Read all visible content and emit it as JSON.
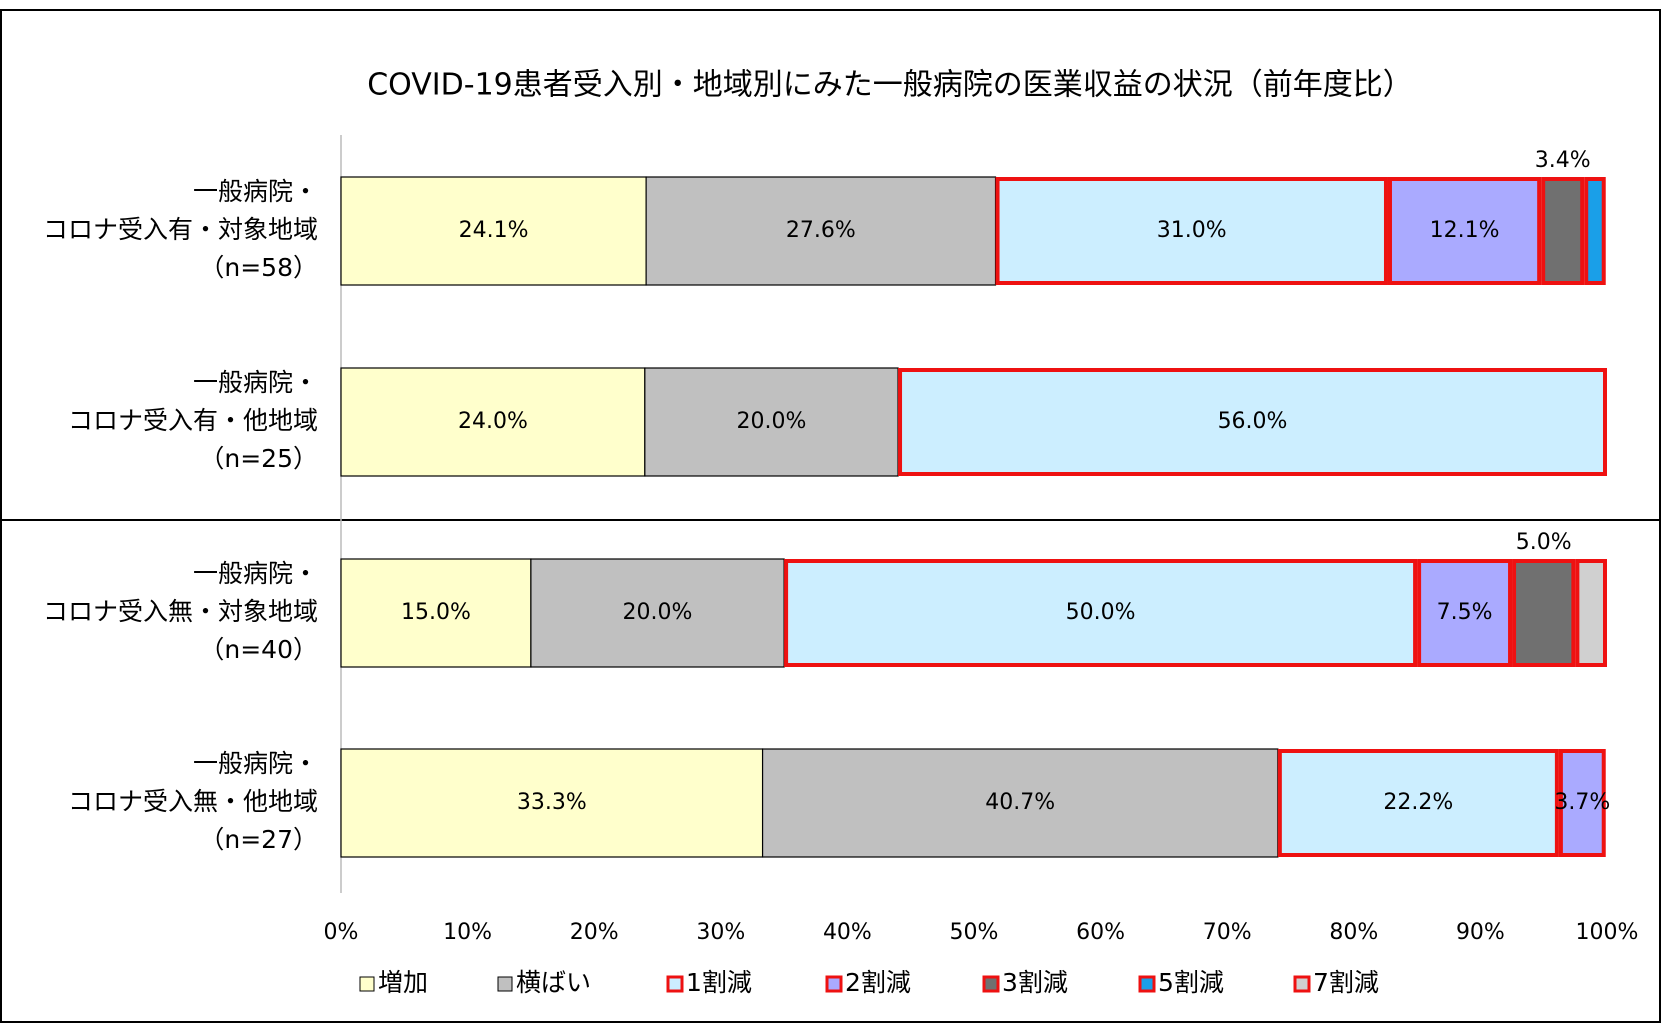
{
  "chart_data": {
    "type": "stacked_bar_horizontal",
    "title": "COVID-19患者受入別・地域別にみた一般病院の医業収益の状況（前年度比）",
    "categories": [
      [
        "一般病院・",
        "コロナ受入有・対象地域",
        "（n=58）"
      ],
      [
        "一般病院・",
        "コロナ受入有・他地域",
        "（n=25）"
      ],
      [
        "一般病院・",
        "コロナ受入無・対象地域",
        "（n=40）"
      ],
      [
        "一般病院・",
        "コロナ受入無・他地域",
        "（n=27）"
      ]
    ],
    "series": [
      {
        "name": "増加",
        "color": "#ffffcc",
        "stroke": "#000000",
        "values": [
          24.1,
          24.0,
          15.0,
          33.3
        ],
        "value_labels": [
          "24.1%",
          "24.0%",
          "15.0%",
          "33.3%"
        ]
      },
      {
        "name": "横ばい",
        "color": "#c0c0c0",
        "stroke": "#000000",
        "values": [
          27.6,
          20.0,
          20.0,
          40.7
        ],
        "value_labels": [
          "27.6%",
          "20.0%",
          "20.0%",
          "40.7%"
        ]
      },
      {
        "name": "1割減",
        "color": "#cceeff",
        "stroke": "#ee1111",
        "values": [
          31.0,
          56.0,
          50.0,
          22.2
        ],
        "value_labels": [
          "31.0%",
          "56.0%",
          "50.0%",
          "22.2%"
        ]
      },
      {
        "name": "2割減",
        "color": "#aaaaff",
        "stroke": "#ee1111",
        "values": [
          12.1,
          null,
          7.5,
          3.7
        ],
        "value_labels": [
          "12.1%",
          null,
          "7.5%",
          "3.7%"
        ]
      },
      {
        "name": "3割減",
        "color": "#707070",
        "stroke": "#ee1111",
        "values": [
          3.4,
          null,
          5.0,
          null
        ],
        "value_labels": [
          "3.4%",
          null,
          "5.0%",
          null
        ]
      },
      {
        "name": "5割減",
        "color": "#1a9fe8",
        "stroke": "#ee1111",
        "values": [
          1.7,
          null,
          null,
          null
        ],
        "value_labels": [
          null,
          null,
          null,
          null
        ]
      },
      {
        "name": "7割減",
        "color": "#d0d0d0",
        "stroke": "#ee1111",
        "values": [
          null,
          null,
          2.5,
          null
        ],
        "value_labels": [
          null,
          null,
          null,
          null
        ]
      }
    ],
    "xlim": [
      0,
      100
    ],
    "xticks": [
      {
        "value": 0,
        "label": "0%"
      },
      {
        "value": 10,
        "label": "10%"
      },
      {
        "value": 20,
        "label": "20%"
      },
      {
        "value": 30,
        "label": "30%"
      },
      {
        "value": 40,
        "label": "40%"
      },
      {
        "value": 50,
        "label": "50%"
      },
      {
        "value": 60,
        "label": "60%"
      },
      {
        "value": 70,
        "label": "70%"
      },
      {
        "value": 80,
        "label": "80%"
      },
      {
        "value": 90,
        "label": "90%"
      },
      {
        "value": 100,
        "label": "100%"
      }
    ],
    "legend": "bottom"
  }
}
